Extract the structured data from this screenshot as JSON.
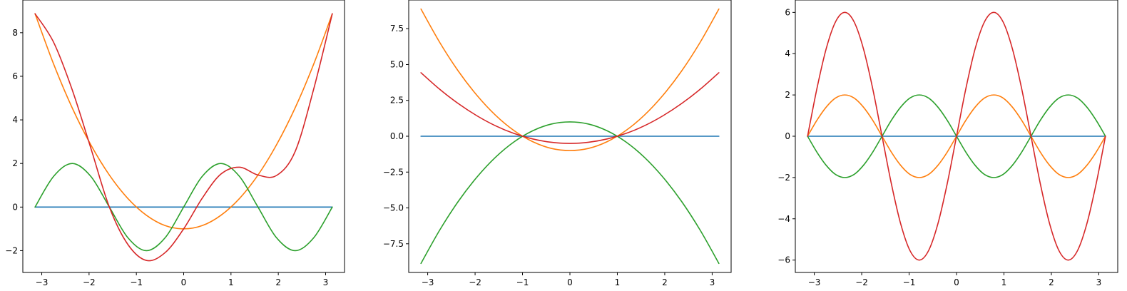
{
  "chart_data": [
    {
      "type": "line",
      "title": "",
      "xlabel": "",
      "ylabel": "",
      "xlim": [
        -3.4,
        3.4
      ],
      "ylim": [
        -3.0,
        9.5
      ],
      "grid": false,
      "x_ticks": [
        -3,
        -2,
        -1,
        0,
        1,
        2,
        3
      ],
      "x_tick_labels": [
        "−3",
        "−2",
        "−1",
        "0",
        "1",
        "2",
        "3"
      ],
      "y_ticks": [
        -2,
        0,
        2,
        4,
        6,
        8
      ],
      "y_tick_labels": [
        "−2",
        "0",
        "2",
        "4",
        "6",
        "8"
      ],
      "x": [
        -3.14159,
        -2.74889,
        -2.35619,
        -1.9635,
        -1.5708,
        -1.1781,
        -0.7854,
        -0.3927,
        0,
        0.3927,
        0.7854,
        1.1781,
        1.5708,
        1.9635,
        2.35619,
        2.74889,
        3.14159
      ],
      "series": [
        {
          "color": "#1f77b4",
          "values": [
            0,
            0,
            0,
            0,
            0,
            0,
            0,
            0,
            0,
            0,
            0,
            0,
            0,
            0,
            0,
            0,
            0
          ]
        },
        {
          "color": "#ff7f0e",
          "values": [
            8.87,
            6.56,
            4.55,
            2.86,
            1.47,
            0.39,
            -0.38,
            -0.85,
            -1.0,
            -0.85,
            -0.38,
            0.39,
            1.47,
            2.86,
            4.55,
            6.56,
            8.87
          ]
        },
        {
          "color": "#2ca02c",
          "values": [
            0,
            1.41,
            2.0,
            1.41,
            0,
            -1.41,
            -2.0,
            -1.41,
            0,
            1.41,
            2.0,
            1.41,
            0,
            -1.41,
            -2.0,
            -1.41,
            0
          ]
        },
        {
          "color": "#d62728",
          "values": [
            8.87,
            7.56,
            5.38,
            2.71,
            0.0,
            -1.72,
            -2.45,
            -2.09,
            -1.0,
            0.41,
            1.51,
            1.83,
            1.47,
            1.45,
            2.55,
            5.42,
            8.87
          ]
        }
      ]
    },
    {
      "type": "line",
      "title": "",
      "xlabel": "",
      "ylabel": "",
      "xlim": [
        -3.4,
        3.4
      ],
      "ylim": [
        -9.5,
        9.5
      ],
      "grid": false,
      "x_ticks": [
        -3,
        -2,
        -1,
        0,
        1,
        2,
        3
      ],
      "x_tick_labels": [
        "−3",
        "−2",
        "−1",
        "0",
        "1",
        "2",
        "3"
      ],
      "y_ticks": [
        -7.5,
        -5.0,
        -2.5,
        0.0,
        2.5,
        5.0,
        7.5
      ],
      "y_tick_labels": [
        "−7.5",
        "−5.0",
        "−2.5",
        "0.0",
        "2.5",
        "5.0",
        "7.5"
      ],
      "x": [
        -3.14159,
        -2.74889,
        -2.35619,
        -1.9635,
        -1.5708,
        -1.1781,
        -0.7854,
        -0.3927,
        0,
        0.3927,
        0.7854,
        1.1781,
        1.5708,
        1.9635,
        2.35619,
        2.74889,
        3.14159
      ],
      "series": [
        {
          "color": "#1f77b4",
          "values": [
            0,
            0,
            0,
            0,
            0,
            0,
            0,
            0,
            0,
            0,
            0,
            0,
            0,
            0,
            0,
            0,
            0
          ]
        },
        {
          "color": "#ff7f0e",
          "values": [
            8.87,
            6.56,
            4.55,
            2.86,
            1.47,
            0.39,
            -0.38,
            -0.85,
            -1.0,
            -0.85,
            -0.38,
            0.39,
            1.47,
            2.86,
            4.55,
            6.56,
            8.87
          ]
        },
        {
          "color": "#2ca02c",
          "values": [
            -8.87,
            -6.56,
            -4.55,
            -2.86,
            -1.47,
            -0.39,
            0.38,
            0.85,
            1.0,
            0.85,
            0.38,
            -0.39,
            -1.47,
            -2.86,
            -4.55,
            -6.56,
            -8.87
          ]
        },
        {
          "color": "#d62728",
          "values": [
            4.43,
            3.28,
            2.28,
            1.43,
            0.73,
            0.19,
            -0.19,
            -0.42,
            -0.5,
            -0.42,
            -0.19,
            0.19,
            0.73,
            1.43,
            2.28,
            3.28,
            4.43
          ]
        }
      ]
    },
    {
      "type": "line",
      "title": "",
      "xlabel": "",
      "ylabel": "",
      "xlim": [
        -3.4,
        3.4
      ],
      "ylim": [
        -6.6,
        6.6
      ],
      "grid": false,
      "x_ticks": [
        -3,
        -2,
        -1,
        0,
        1,
        2,
        3
      ],
      "x_tick_labels": [
        "−3",
        "−2",
        "−1",
        "0",
        "1",
        "2",
        "3"
      ],
      "y_ticks": [
        -6,
        -4,
        -2,
        0,
        2,
        4,
        6
      ],
      "y_tick_labels": [
        "−6",
        "−4",
        "−2",
        "0",
        "2",
        "4",
        "6"
      ],
      "x": [
        -3.14159,
        -2.94524,
        -2.74889,
        -2.55254,
        -2.35619,
        -2.15984,
        -1.9635,
        -1.76715,
        -1.5708,
        -1.37445,
        -1.1781,
        -0.98175,
        -0.7854,
        -0.58905,
        -0.3927,
        -0.19635,
        0,
        0.19635,
        0.3927,
        0.58905,
        0.7854,
        0.98175,
        1.1781,
        1.37445,
        1.5708,
        1.76715,
        1.9635,
        2.15984,
        2.35619,
        2.55254,
        2.74889,
        2.94524,
        3.14159
      ],
      "series": [
        {
          "color": "#1f77b4",
          "values": [
            0,
            0,
            0,
            0,
            0,
            0,
            0,
            0,
            0,
            0,
            0,
            0,
            0,
            0,
            0,
            0,
            0,
            0,
            0,
            0,
            0,
            0,
            0,
            0,
            0,
            0,
            0,
            0,
            0,
            0,
            0,
            0,
            0
          ]
        },
        {
          "color": "#ff7f0e",
          "values": [
            0,
            0.77,
            1.41,
            1.85,
            2.0,
            1.85,
            1.41,
            0.77,
            0,
            -0.77,
            -1.41,
            -1.85,
            -2.0,
            -1.85,
            -1.41,
            -0.77,
            0,
            0.77,
            1.41,
            1.85,
            2.0,
            1.85,
            1.41,
            0.77,
            0,
            -0.77,
            -1.41,
            -1.85,
            -2.0,
            -1.85,
            -1.41,
            -0.77,
            0
          ]
        },
        {
          "color": "#2ca02c",
          "values": [
            0,
            -0.77,
            -1.41,
            -1.85,
            -2.0,
            -1.85,
            -1.41,
            -0.77,
            0,
            0.77,
            1.41,
            1.85,
            2.0,
            1.85,
            1.41,
            0.77,
            0,
            -0.77,
            -1.41,
            -1.85,
            -2.0,
            -1.85,
            -1.41,
            -0.77,
            0,
            0.77,
            1.41,
            1.85,
            2.0,
            1.85,
            1.41,
            0.77,
            0
          ]
        },
        {
          "color": "#d62728",
          "values": [
            0,
            2.3,
            4.24,
            5.54,
            6.0,
            5.54,
            4.24,
            2.3,
            0,
            -2.3,
            -4.24,
            -5.54,
            -6.0,
            -5.54,
            -4.24,
            -2.3,
            0,
            2.3,
            4.24,
            5.54,
            6.0,
            5.54,
            4.24,
            2.3,
            0,
            -2.3,
            -4.24,
            -5.54,
            -6.0,
            -5.54,
            -4.24,
            -2.3,
            0
          ]
        }
      ]
    }
  ]
}
